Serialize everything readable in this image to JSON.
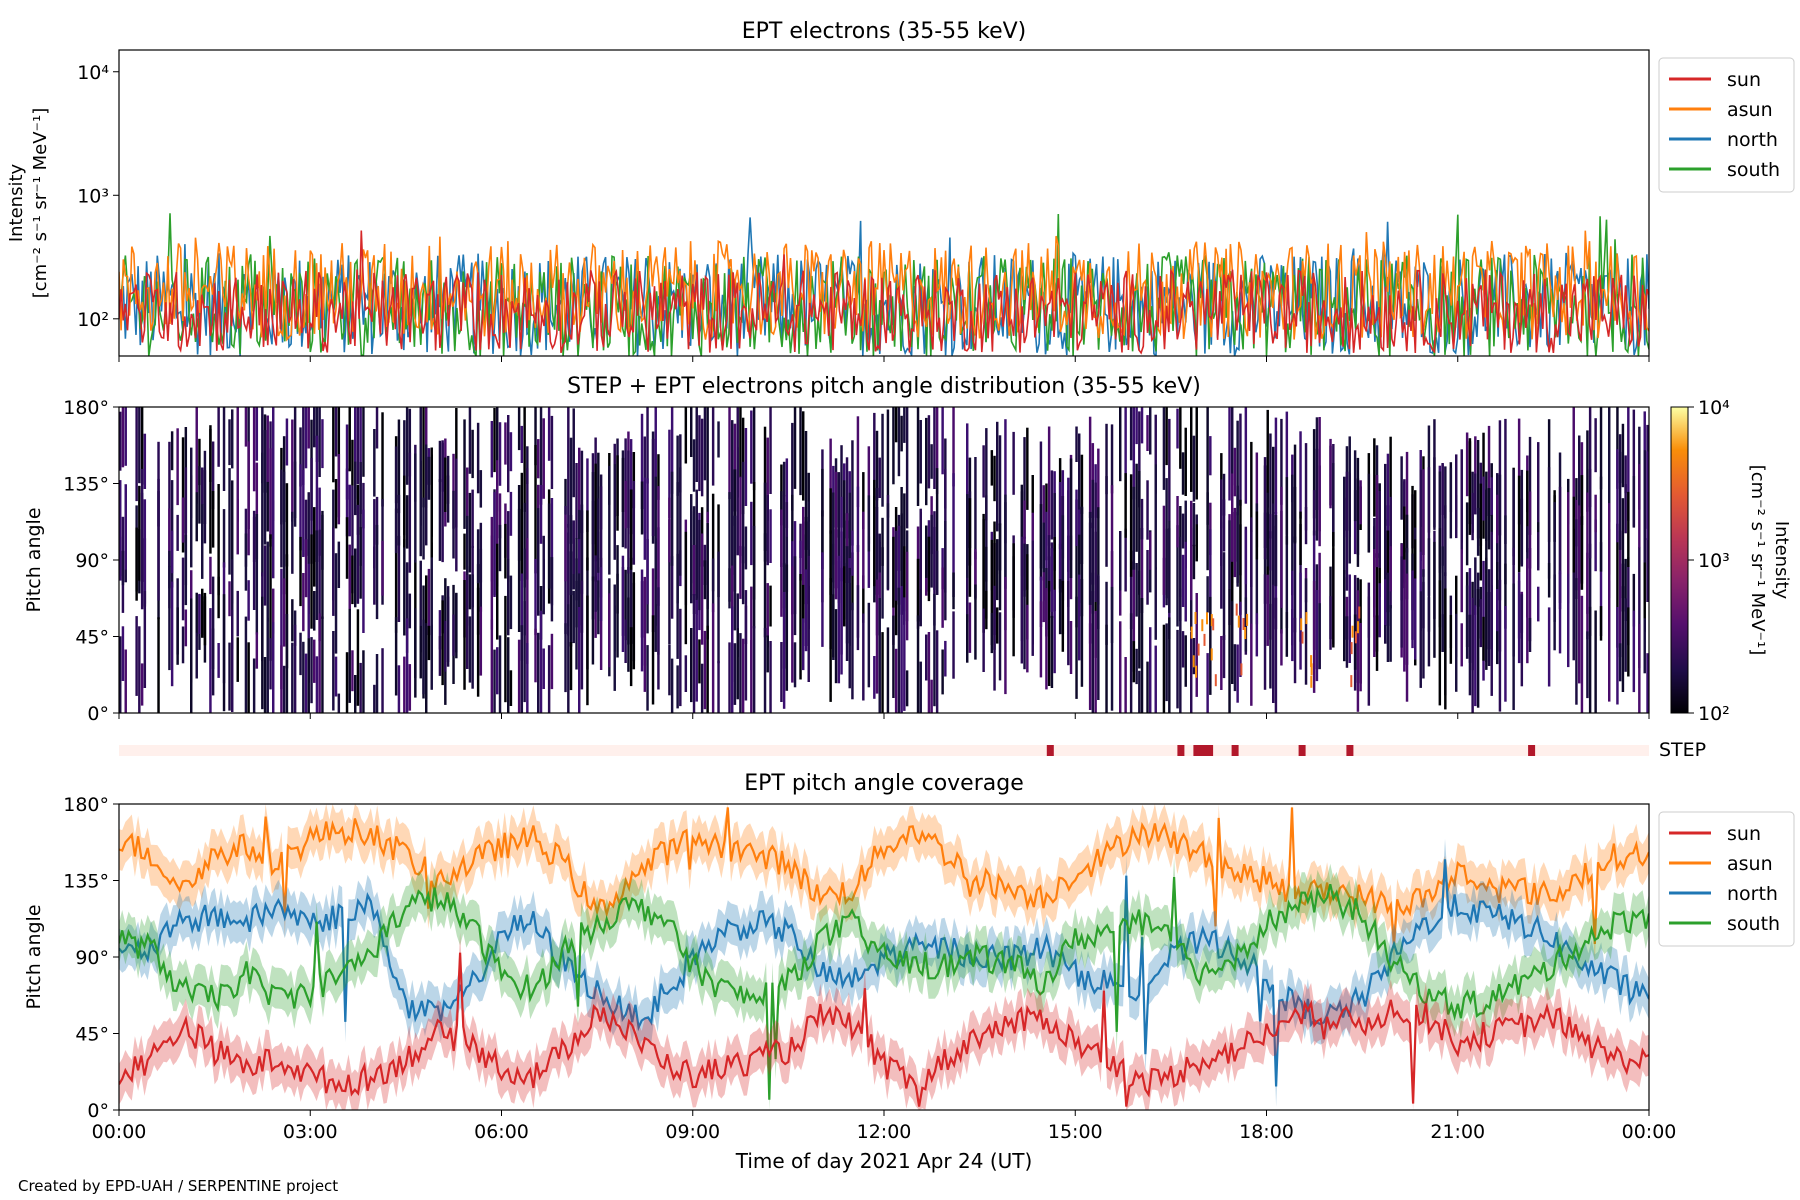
{
  "footer": {
    "credit": "Created by EPD-UAH / SERPENTINE project"
  },
  "colors": {
    "sun": "#d62728",
    "asun": "#ff7f0e",
    "north": "#1f77b4",
    "south": "#2ca02c",
    "step_bar": "#b2182b",
    "step_background": "#fff0ec"
  },
  "chart_data": [
    {
      "id": "intensity",
      "type": "line",
      "title": "EPT electrons (35-55 keV)",
      "ylabel": [
        "Intensity",
        "[cm⁻² s⁻¹ sr⁻¹ MeV⁻¹]"
      ],
      "yscale": "log",
      "ylim": [
        50,
        15000
      ],
      "yticks": [
        {
          "value": 100,
          "label": "10²"
        },
        {
          "value": 1000,
          "label": "10³"
        },
        {
          "value": 10000,
          "label": "10⁴"
        }
      ],
      "xlim": [
        0,
        24
      ],
      "legend": {
        "placement": "outside-right-top",
        "entries": [
          "sun",
          "asun",
          "north",
          "south"
        ]
      },
      "series": [
        {
          "name": "north",
          "color": "#1f77b4",
          "baseline": 130,
          "spread": 0.42
        },
        {
          "name": "south",
          "color": "#2ca02c",
          "baseline": 125,
          "spread": 0.42
        },
        {
          "name": "asun",
          "color": "#ff7f0e",
          "baseline": 170,
          "spread": 0.4
        },
        {
          "name": "sun",
          "color": "#d62728",
          "baseline": 115,
          "spread": 0.34
        }
      ],
      "range_note_values": {
        "min": 50,
        "typical_peak": 700
      }
    },
    {
      "id": "pad",
      "type": "heatmap",
      "title": "STEP + EPT electrons pitch angle distribution (35-55 keV)",
      "ylabel": "Pitch angle",
      "ylim": [
        0,
        180
      ],
      "yticks": [
        {
          "value": 0,
          "label": "0°"
        },
        {
          "value": 45,
          "label": "45°"
        },
        {
          "value": 90,
          "label": "90°"
        },
        {
          "value": 135,
          "label": "135°"
        },
        {
          "value": 180,
          "label": "180°"
        }
      ],
      "xlim": [
        0,
        24
      ],
      "colorbar": {
        "label": [
          "Intensity",
          "[cm⁻² s⁻¹ sr⁻¹ MeV⁻¹]"
        ],
        "scale": "log",
        "range": [
          100,
          10000
        ],
        "ticks": [
          {
            "value": 100,
            "label": "10²"
          },
          {
            "value": 1000,
            "label": "10³"
          },
          {
            "value": 10000,
            "label": "10⁴"
          }
        ],
        "colormap": "inferno"
      }
    },
    {
      "id": "step",
      "type": "bar",
      "label": "STEP",
      "xlim": [
        0,
        24
      ],
      "spikes": [
        14.6,
        16.65,
        16.9,
        17.0,
        17.1,
        17.5,
        18.55,
        19.3,
        22.15
      ]
    },
    {
      "id": "coverage",
      "type": "line",
      "title": "EPT pitch angle coverage",
      "ylabel": "Pitch angle",
      "xlabel": "Time of day 2021 Apr 24 (UT)",
      "ylim": [
        0,
        180
      ],
      "yticks": [
        {
          "value": 0,
          "label": "0°"
        },
        {
          "value": 45,
          "label": "45°"
        },
        {
          "value": 90,
          "label": "90°"
        },
        {
          "value": 135,
          "label": "135°"
        },
        {
          "value": 180,
          "label": "180°"
        }
      ],
      "xlim": [
        0,
        24
      ],
      "xticks": [
        {
          "value": 0,
          "label": "00:00"
        },
        {
          "value": 3,
          "label": "03:00"
        },
        {
          "value": 6,
          "label": "06:00"
        },
        {
          "value": 9,
          "label": "09:00"
        },
        {
          "value": 12,
          "label": "12:00"
        },
        {
          "value": 15,
          "label": "15:00"
        },
        {
          "value": 18,
          "label": "18:00"
        },
        {
          "value": 21,
          "label": "21:00"
        },
        {
          "value": 24,
          "label": "00:00"
        }
      ],
      "legend": {
        "placement": "outside-right-top",
        "entries": [
          "sun",
          "asun",
          "north",
          "south"
        ]
      },
      "series": [
        {
          "name": "asun",
          "color": "#ff7f0e",
          "x": [
            0,
            0.5,
            1,
            1.5,
            2,
            2.5,
            3,
            3.5,
            4,
            4.5,
            5,
            5.5,
            6,
            6.5,
            7,
            7.5,
            8,
            8.5,
            9,
            9.5,
            10,
            10.5,
            11,
            11.5,
            12,
            12.5,
            13,
            13.5,
            14,
            14.5,
            15,
            15.5,
            16,
            16.5,
            17,
            17.5,
            18,
            18.5,
            19,
            19.5,
            20,
            20.5,
            21,
            21.5,
            22,
            22.5,
            23,
            23.5,
            24
          ],
          "y": [
            160,
            150,
            130,
            150,
            155,
            145,
            160,
            165,
            162,
            150,
            135,
            145,
            155,
            160,
            145,
            115,
            135,
            150,
            160,
            155,
            150,
            145,
            125,
            130,
            155,
            165,
            150,
            135,
            130,
            125,
            140,
            150,
            165,
            160,
            150,
            140,
            135,
            125,
            130,
            125,
            120,
            125,
            140,
            130,
            130,
            125,
            140,
            150,
            150
          ]
        },
        {
          "name": "north",
          "color": "#1f77b4",
          "x": [
            0,
            0.5,
            1,
            1.5,
            2,
            2.5,
            3,
            3.5,
            4,
            4.5,
            5,
            5.5,
            6,
            6.5,
            7,
            7.5,
            8,
            8.5,
            9,
            9.5,
            10,
            10.5,
            11,
            11.5,
            12,
            12.5,
            13,
            13.5,
            14,
            14.5,
            15,
            15.5,
            16,
            16.5,
            17,
            17.5,
            18,
            18.5,
            19,
            19.5,
            20,
            20.5,
            21,
            21.5,
            22,
            22.5,
            23,
            23.5,
            24
          ],
          "y": [
            90,
            95,
            110,
            115,
            110,
            120,
            110,
            115,
            120,
            60,
            55,
            70,
            105,
            110,
            85,
            70,
            55,
            60,
            90,
            105,
            110,
            105,
            80,
            75,
            90,
            95,
            95,
            90,
            90,
            95,
            80,
            75,
            70,
            90,
            100,
            95,
            75,
            60,
            55,
            65,
            90,
            110,
            120,
            115,
            110,
            100,
            85,
            75,
            70
          ]
        },
        {
          "name": "south",
          "color": "#2ca02c",
          "x": [
            0,
            0.5,
            1,
            1.5,
            2,
            2.5,
            3,
            3.5,
            4,
            4.5,
            5,
            5.5,
            6,
            6.5,
            7,
            7.5,
            8,
            8.5,
            9,
            9.5,
            10,
            10.5,
            11,
            11.5,
            12,
            12.5,
            13,
            13.5,
            14,
            14.5,
            15,
            15.5,
            16,
            16.5,
            17,
            17.5,
            18,
            18.5,
            19,
            19.5,
            20,
            20.5,
            21,
            21.5,
            22,
            22.5,
            23,
            23.5,
            24
          ],
          "y": [
            100,
            95,
            70,
            65,
            80,
            65,
            70,
            80,
            95,
            120,
            125,
            110,
            80,
            70,
            95,
            110,
            120,
            115,
            85,
            70,
            65,
            75,
            100,
            110,
            90,
            85,
            85,
            90,
            85,
            75,
            100,
            105,
            110,
            100,
            80,
            90,
            110,
            120,
            125,
            115,
            85,
            70,
            60,
            65,
            75,
            85,
            100,
            110,
            115
          ]
        },
        {
          "name": "sun",
          "color": "#d62728",
          "x": [
            0,
            0.5,
            1,
            1.5,
            2,
            2.5,
            3,
            3.5,
            4,
            4.5,
            5,
            5.5,
            6,
            6.5,
            7,
            7.5,
            8,
            8.5,
            9,
            9.5,
            10,
            10.5,
            11,
            11.5,
            12,
            12.5,
            13,
            13.5,
            14,
            14.5,
            15,
            15.5,
            16,
            16.5,
            17,
            17.5,
            18,
            18.5,
            19,
            19.5,
            20,
            20.5,
            21,
            21.5,
            22,
            22.5,
            23,
            23.5,
            24
          ],
          "y": [
            20,
            30,
            50,
            35,
            25,
            30,
            20,
            15,
            20,
            30,
            45,
            40,
            25,
            20,
            35,
            60,
            45,
            30,
            20,
            25,
            30,
            35,
            55,
            50,
            25,
            15,
            30,
            45,
            50,
            55,
            40,
            30,
            15,
            20,
            30,
            35,
            45,
            55,
            55,
            50,
            60,
            55,
            40,
            45,
            50,
            55,
            40,
            30,
            30
          ]
        }
      ],
      "band_halfwidth": 12
    }
  ]
}
